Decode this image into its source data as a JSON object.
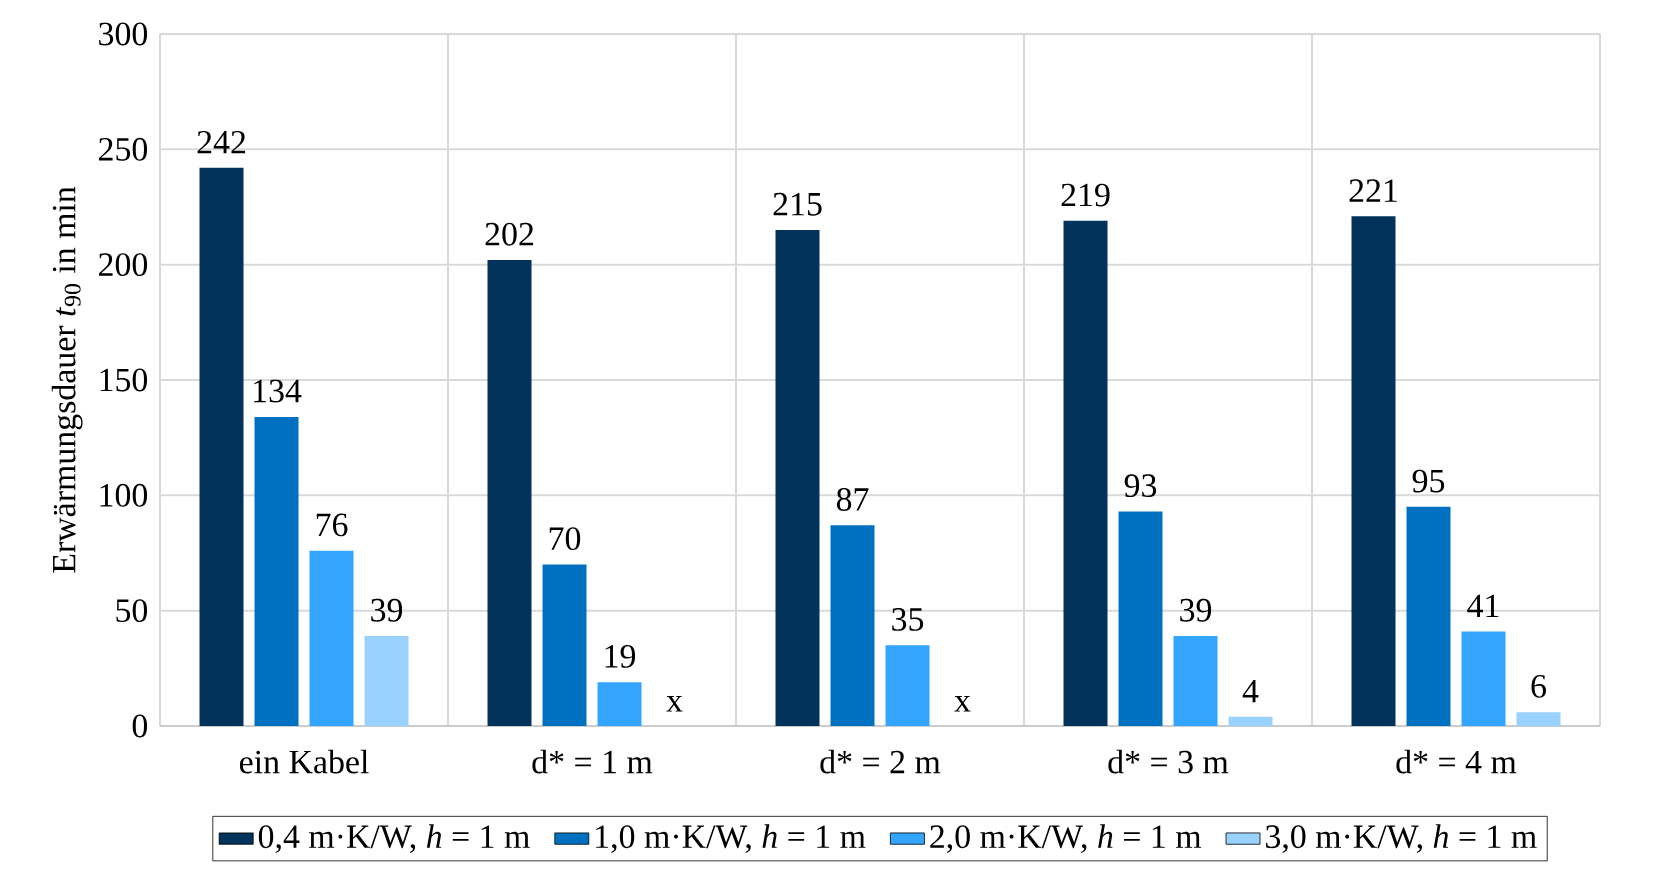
{
  "chart_data": {
    "type": "bar",
    "ylabel": "Erwärmungsdauer *t*$_{90}$ in min",
    "categories": [
      "ein Kabel",
      "d* = 1 m",
      "d* = 2 m",
      "d* = 3 m",
      "d* = 4 m"
    ],
    "ylim": [
      0,
      300
    ],
    "yticks": [
      0,
      50,
      100,
      150,
      200,
      250,
      300
    ],
    "grid": true,
    "legend": "bottom",
    "series": [
      {
        "name": "0,4 m·K/W, *h* = 1 m",
        "color": "#03325a",
        "values": [
          242,
          202,
          215,
          219,
          221
        ],
        "value_labels": [
          "242",
          "202",
          "215",
          "219",
          "221"
        ]
      },
      {
        "name": "1,0 m·K/W, *h* = 1 m",
        "color": "#0070c0",
        "values": [
          134,
          70,
          87,
          93,
          95
        ],
        "value_labels": [
          "134",
          "70",
          "87",
          "93",
          "95"
        ]
      },
      {
        "name": "2,0 m·K/W, *h* = 1 m",
        "color": "#33a5ff",
        "values": [
          76,
          19,
          35,
          39,
          41
        ],
        "value_labels": [
          "76",
          "19",
          "35",
          "39",
          "41"
        ]
      },
      {
        "name": "3,0 m·K/W, *h* = 1 m",
        "color": "#99d1ff",
        "values": [
          39,
          null,
          null,
          4,
          6
        ],
        "value_labels": [
          "39",
          "x",
          "x",
          "4",
          "6"
        ]
      }
    ]
  }
}
